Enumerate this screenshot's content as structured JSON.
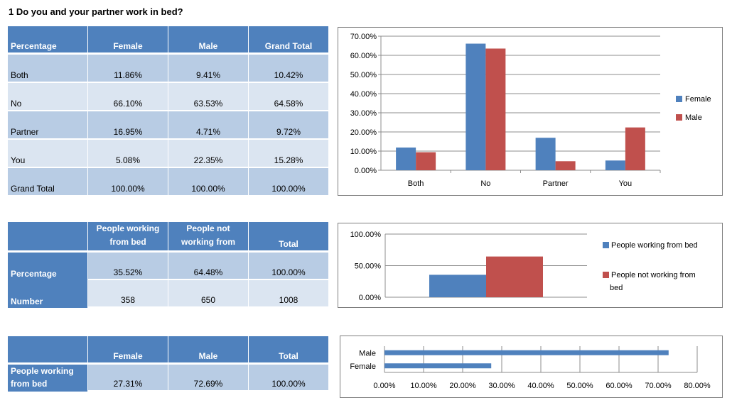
{
  "title": "1 Do you and your partner work in bed?",
  "table1": {
    "headers": [
      "Percentage",
      "Female",
      "Male",
      "Grand Total"
    ],
    "rows": [
      [
        "Both",
        "11.86%",
        "9.41%",
        "10.42%"
      ],
      [
        "No",
        "66.10%",
        "63.53%",
        "64.58%"
      ],
      [
        "Partner",
        "16.95%",
        "4.71%",
        "9.72%"
      ],
      [
        "You",
        "5.08%",
        "22.35%",
        "15.28%"
      ],
      [
        "Grand Total",
        "100.00%",
        "100.00%",
        "100.00%"
      ]
    ]
  },
  "table2": {
    "headers": [
      "",
      "People working from bed",
      "People not working from",
      "Total"
    ],
    "rows": [
      [
        "Percentage",
        "35.52%",
        "64.48%",
        "100.00%"
      ],
      [
        "Number",
        "358",
        "650",
        "1008"
      ]
    ]
  },
  "table3": {
    "headers": [
      "",
      "Female",
      "Male",
      "Total"
    ],
    "rows": [
      [
        "People working from bed",
        "27.31%",
        "72.69%",
        "100.00%"
      ]
    ]
  },
  "chart_data": [
    {
      "type": "bar",
      "categories": [
        "Both",
        "No",
        "Partner",
        "You"
      ],
      "series": [
        {
          "name": "Female",
          "values": [
            11.86,
            66.1,
            16.95,
            5.08
          ],
          "color": "#4f81bd"
        },
        {
          "name": "Male",
          "values": [
            9.41,
            63.53,
            4.71,
            22.35
          ],
          "color": "#c0504d"
        }
      ],
      "yticks": [
        "0.00%",
        "10.00%",
        "20.00%",
        "30.00%",
        "40.00%",
        "50.00%",
        "60.00%",
        "70.00%"
      ],
      "ylim": [
        0,
        70
      ],
      "grid": true,
      "legend": "right"
    },
    {
      "type": "bar",
      "categories": [
        ""
      ],
      "series": [
        {
          "name": "People working from bed",
          "values": [
            35.52
          ],
          "color": "#4f81bd"
        },
        {
          "name": "People not working from bed",
          "values": [
            64.48
          ],
          "color": "#c0504d"
        }
      ],
      "yticks": [
        "0.00%",
        "50.00%",
        "100.00%"
      ],
      "ylim": [
        0,
        100
      ],
      "grid": true,
      "legend": "right"
    },
    {
      "type": "bar",
      "orientation": "horizontal",
      "categories": [
        "Female",
        "Male"
      ],
      "values": [
        27.31,
        72.69
      ],
      "color": "#4f81bd",
      "xticks": [
        "0.00%",
        "10.00%",
        "20.00%",
        "30.00%",
        "40.00%",
        "50.00%",
        "60.00%",
        "70.00%",
        "80.00%"
      ],
      "xlim": [
        0,
        80
      ],
      "grid": true
    }
  ]
}
